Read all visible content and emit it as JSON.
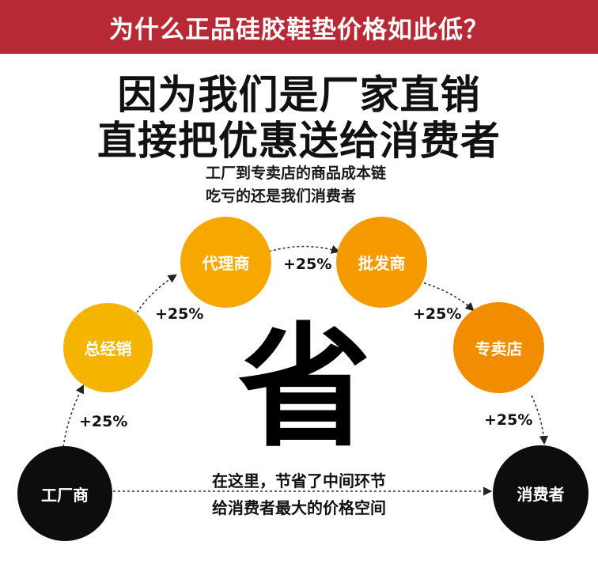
{
  "banner": {
    "title": "为什么正品硅胶鞋垫价格如此低？",
    "bg": "#b72a35"
  },
  "headline": {
    "line1": "因为我们是厂家直销",
    "line2": "直接把优惠送给消费者"
  },
  "subtitle": {
    "line1": "工厂到专卖店的商品成本链",
    "line2": "吃亏的还是我们消费者"
  },
  "chain": {
    "nodes": [
      {
        "label": "工厂商",
        "color": "#0d0d0d"
      },
      {
        "label": "总经销",
        "color": "#f5b400"
      },
      {
        "label": "代理商",
        "color": "#f7a800"
      },
      {
        "label": "批发商",
        "color": "#f59a00"
      },
      {
        "label": "专卖店",
        "color": "#f28c00"
      },
      {
        "label": "消费者",
        "color": "#0d0d0d"
      }
    ],
    "markups": [
      "+25%",
      "+25%",
      "+25%",
      "+25%",
      "+25%"
    ]
  },
  "center_char": "省",
  "bottom_note": {
    "line1": "在这里，节省了中间环节",
    "line2": "给消费者最大的价格空间"
  }
}
